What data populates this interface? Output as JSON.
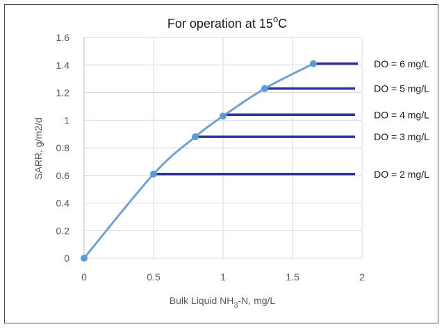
{
  "chart_data": {
    "type": "line",
    "title": {
      "main": "For operation at 15",
      "superscript": "o",
      "tail": "C"
    },
    "xlabel": {
      "main": "Bulk Liquid NH",
      "subscript": "3",
      "tail": "-N,  mg/L"
    },
    "ylabel": "SARR, g/m2/d",
    "xlim": [
      0,
      2
    ],
    "ylim": [
      0,
      1.6
    ],
    "x_ticks": [
      "0",
      "0.5",
      "1",
      "1.5",
      "2"
    ],
    "y_ticks": [
      "0",
      "0.2",
      "0.4",
      "0.6",
      "0.8",
      "1",
      "1.2",
      "1.4",
      "1.6"
    ],
    "grid": true,
    "curve": {
      "x": [
        0,
        0.5,
        0.8,
        1.0,
        1.3,
        1.65
      ],
      "y": [
        0,
        0.61,
        0.88,
        1.03,
        1.23,
        1.41
      ],
      "color": "#6fa2d2"
    },
    "do_lines": [
      {
        "label": "DO = 2 mg/L",
        "x_start": 0.5,
        "x_end": 1.95,
        "y": 0.61
      },
      {
        "label": "DO = 3 mg/L",
        "x_start": 0.8,
        "x_end": 1.95,
        "y": 0.88
      },
      {
        "label": "DO = 4 mg/L",
        "x_start": 1.0,
        "x_end": 1.95,
        "y": 1.04
      },
      {
        "label": "DO = 5 mg/L",
        "x_start": 1.3,
        "x_end": 1.95,
        "y": 1.23
      },
      {
        "label": "DO = 6 mg/L",
        "x_start": 1.65,
        "x_end": 1.97,
        "y": 1.41
      }
    ],
    "colors": {
      "curve": "#6fa2d2",
      "marker": "#5b9bd5",
      "do_line": "#2e3192",
      "grid": "#d9d9d9"
    }
  }
}
